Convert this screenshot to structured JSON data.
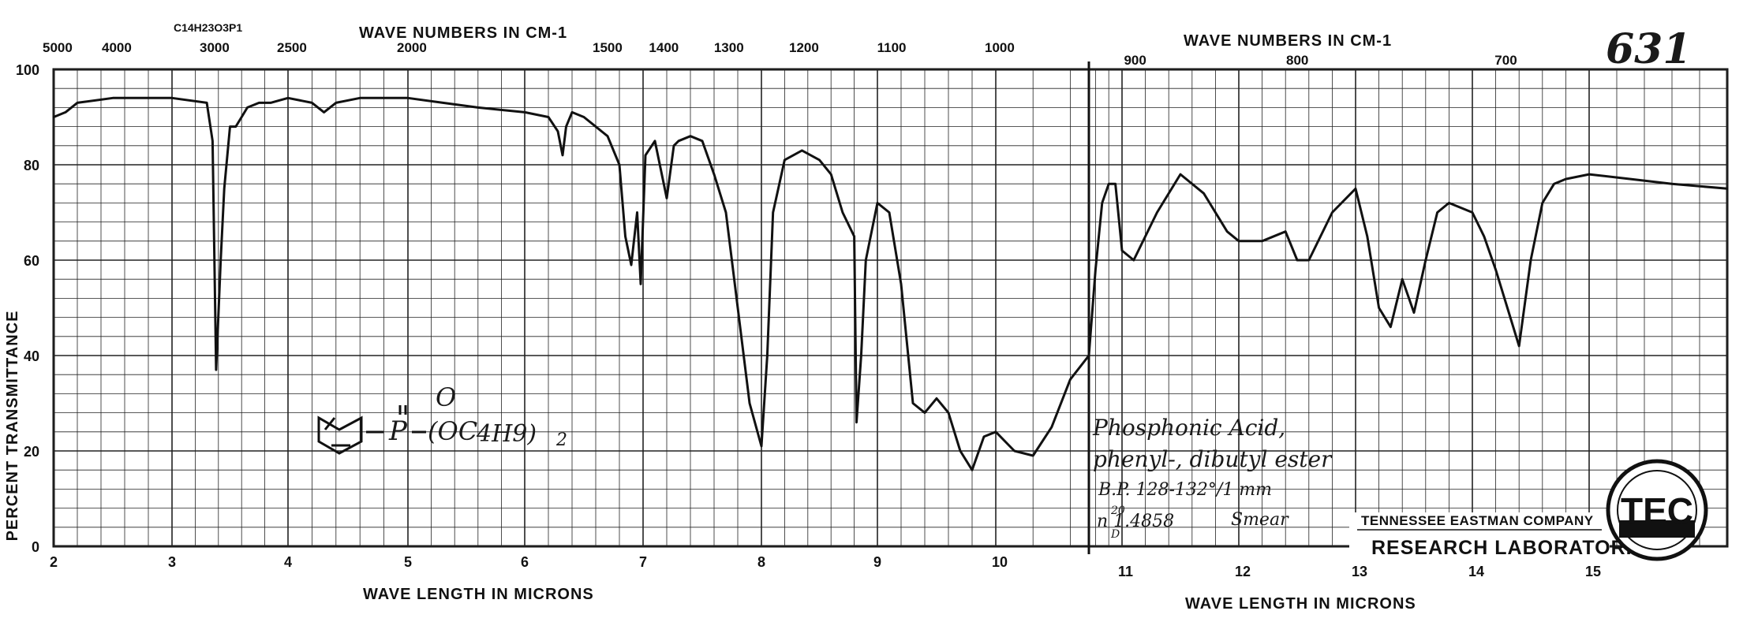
{
  "chart_data": {
    "type": "line",
    "title": "",
    "formula": "C14H23O3P1",
    "sheet_number": "631",
    "ylabel": "PERCENT TRANSMITTANCE",
    "xlabel_bottom": "WAVE LENGTH IN MICRONS",
    "xlabel_top": "WAVE NUMBERS IN CM-1",
    "ylim": [
      0,
      100
    ],
    "xlim": [
      2,
      16
    ],
    "y_ticks": [
      0,
      20,
      40,
      60,
      80,
      100
    ],
    "x_ticks_microns": [
      2,
      3,
      4,
      5,
      6,
      7,
      8,
      9,
      10,
      11,
      12,
      13,
      14,
      15
    ],
    "top_ticks_wavenumbers": [
      5000,
      4000,
      3000,
      2500,
      2000,
      1500,
      1400,
      1300,
      1200,
      1100,
      1000,
      900,
      800,
      700
    ],
    "grid": true,
    "x_scale": "piecewise: 2-10.5 microns and 10.5-16 microns panels",
    "series": [
      {
        "x": [
          2.0,
          2.1,
          2.2,
          2.5,
          3.0,
          3.3,
          3.35,
          3.38,
          3.42,
          3.45,
          3.5,
          3.55,
          3.6,
          3.65,
          3.75,
          3.85,
          4.0,
          4.2,
          4.3,
          4.4,
          4.6,
          5.0,
          5.3,
          5.6,
          6.0,
          6.2,
          6.28,
          6.32,
          6.35,
          6.4,
          6.5,
          6.6,
          6.7,
          6.8,
          6.85,
          6.9,
          6.95,
          6.98,
          7.02,
          7.1,
          7.2,
          7.26,
          7.3,
          7.4,
          7.5,
          7.6,
          7.7,
          7.8,
          7.9,
          8.0,
          8.05,
          8.1,
          8.2,
          8.35,
          8.5,
          8.6,
          8.7,
          8.8,
          8.82,
          8.86,
          8.9,
          9.0,
          9.1,
          9.2,
          9.3,
          9.4,
          9.5,
          9.6,
          9.7,
          9.8,
          9.9,
          10.0,
          10.1,
          10.2,
          10.3,
          10.4,
          10.5,
          10.6,
          10.7,
          10.8,
          10.9,
          11.0,
          11.1,
          11.3,
          11.5,
          11.7,
          11.9,
          12.0,
          12.2,
          12.4,
          12.5,
          12.6,
          12.8,
          13.0,
          13.1,
          13.2,
          13.3,
          13.4,
          13.5,
          13.6,
          13.7,
          13.8,
          14.0,
          14.1,
          14.2,
          14.3,
          14.4,
          14.5,
          14.6,
          14.7,
          14.8,
          15.0,
          15.3,
          15.6,
          16.0
        ],
        "y": [
          90,
          91,
          93,
          94,
          94,
          93,
          85,
          37,
          60,
          75,
          88,
          88,
          90,
          92,
          93,
          93,
          94,
          93,
          91,
          93,
          94,
          94,
          93,
          92,
          91,
          90,
          87,
          82,
          88,
          91,
          90,
          88,
          86,
          80,
          65,
          59,
          70,
          55,
          82,
          85,
          73,
          84,
          85,
          86,
          85,
          78,
          70,
          50,
          30,
          21,
          40,
          70,
          81,
          83,
          81,
          78,
          70,
          65,
          26,
          40,
          60,
          72,
          70,
          55,
          30,
          28,
          31,
          28,
          20,
          16,
          23,
          24,
          20,
          19,
          25,
          35,
          40,
          58,
          72,
          76,
          76,
          62,
          60,
          70,
          78,
          74,
          66,
          64,
          64,
          66,
          60,
          60,
          70,
          75,
          65,
          50,
          46,
          56,
          49,
          60,
          70,
          72,
          70,
          65,
          58,
          50,
          42,
          60,
          72,
          76,
          77,
          78,
          77,
          76,
          75
        ]
      }
    ]
  },
  "annotations": {
    "structure_formula": "P",
    "structure_oxygen": "O",
    "structure_substituent": "(OC",
    "structure_butyl": "4H9)",
    "structure_subscript": "2",
    "compound_line1": "Phosphonic Acid,",
    "compound_line2": "phenyl-, dibutyl ester",
    "boiling_point": "B.P. 128-132°/1 mm",
    "refractive_index": "n 1.4858",
    "ri_sup": "20",
    "ri_sub": "D",
    "sample_prep": "Smear",
    "company_name": "TENNESSEE EASTMAN COMPANY",
    "lab_name": "RESEARCH LABORATORIES",
    "logo_text": "TEC",
    "seal_text": "TENNESSEE EASTMAN COMPANY"
  },
  "colors": {
    "ink": "#111111",
    "grid": "#222222",
    "paper": "#ffffff"
  }
}
